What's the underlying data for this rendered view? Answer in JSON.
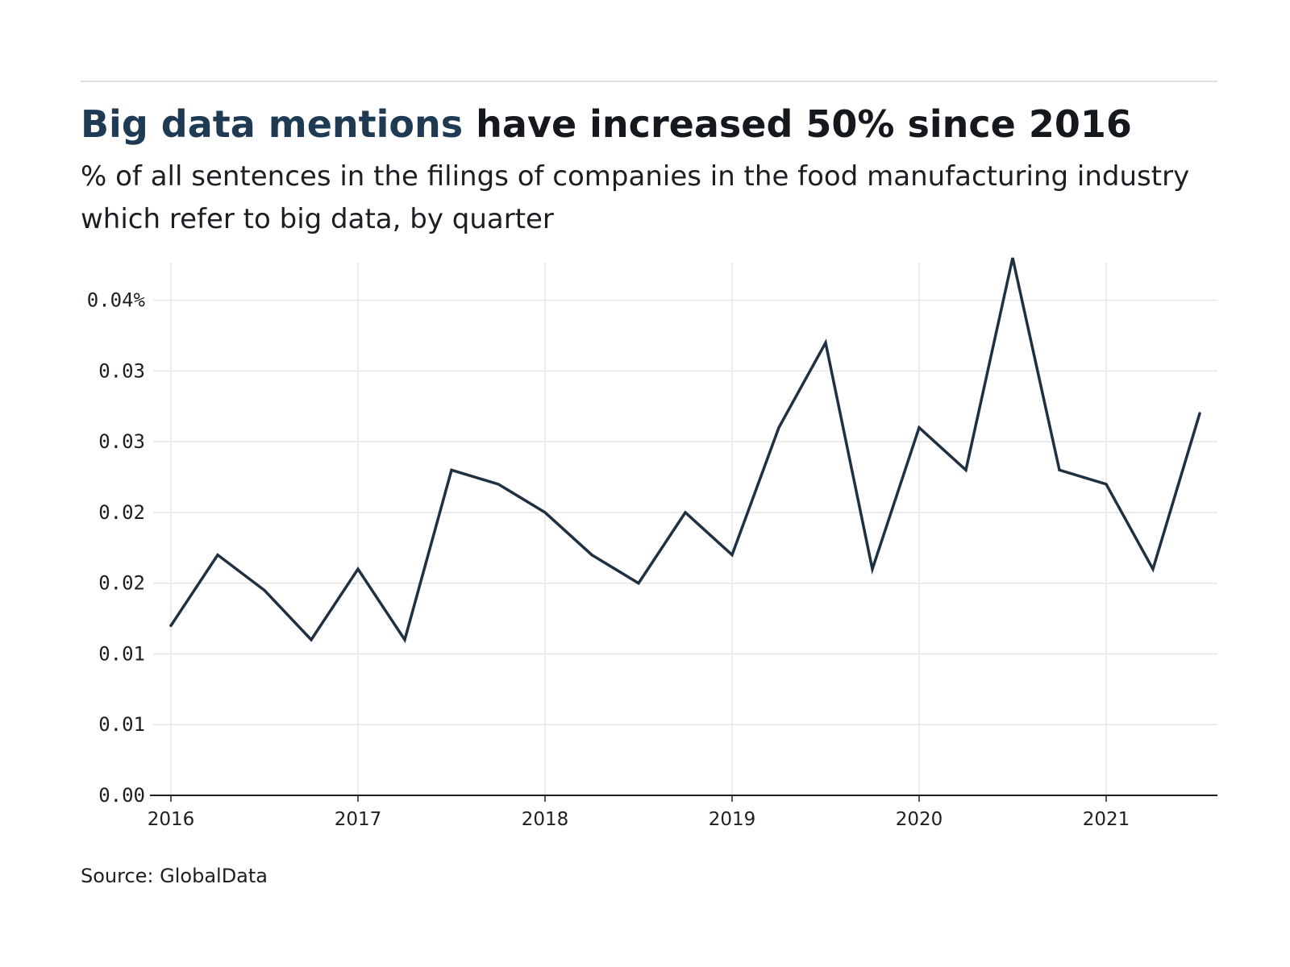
{
  "header": {
    "title_highlight": "Big data mentions",
    "title_rest": " have increased 50% since 2016",
    "subtitle": "% of all sentences in the filings of companies in the food manufacturing industry which refer to big data, by quarter"
  },
  "footer": {
    "source": "Source: GlobalData"
  },
  "colors": {
    "line": "#1f3041",
    "title_highlight": "#1f3a53",
    "grid": "#e6e6e6",
    "axis": "#1c2127"
  },
  "chart_data": {
    "type": "line",
    "title": "Big data mentions have increased 50% since 2016",
    "subtitle": "% of all sentences in the filings of companies in the food manufacturing industry which refer to big data, by quarter",
    "xlabel": "",
    "ylabel": "",
    "x": [
      "2016 Q1",
      "2016 Q2",
      "2016 Q3",
      "2016 Q4",
      "2017 Q1",
      "2017 Q2",
      "2017 Q3",
      "2017 Q4",
      "2018 Q1",
      "2018 Q2",
      "2018 Q3",
      "2018 Q4",
      "2019 Q1",
      "2019 Q2",
      "2019 Q3",
      "2019 Q4",
      "2020 Q1",
      "2020 Q2",
      "2020 Q3",
      "2020 Q4",
      "2021 Q1",
      "2021 Q2",
      "2021 Q3"
    ],
    "series": [
      {
        "values": [
          0.012,
          0.017,
          0.0145,
          0.011,
          0.016,
          0.011,
          0.023,
          0.022,
          0.02,
          0.017,
          0.015,
          0.02,
          0.017,
          0.026,
          0.032,
          0.016,
          0.026,
          0.023,
          0.038,
          0.023,
          0.022,
          0.016,
          0.027
        ]
      }
    ],
    "x_tick_labels": [
      "2016",
      "2017",
      "2018",
      "2019",
      "2020",
      "2021"
    ],
    "y_tick_values": [
      0.0,
      0.005,
      0.01,
      0.015,
      0.02,
      0.025,
      0.03,
      0.035
    ],
    "y_tick_labels": [
      "0.00",
      "0.01",
      "0.01",
      "0.02",
      "0.02",
      "0.03",
      "0.03",
      "0.04%"
    ],
    "ylim": [
      0,
      0.038
    ],
    "grid": true,
    "legend": "none"
  }
}
